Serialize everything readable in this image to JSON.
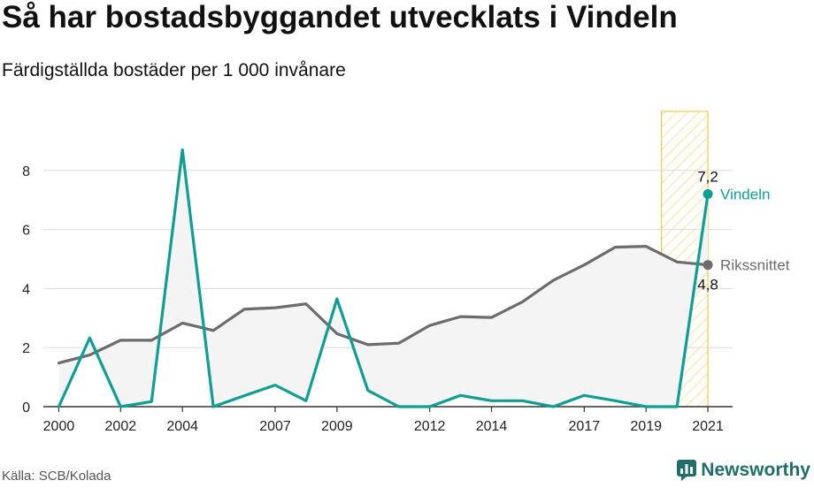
{
  "header": {
    "title": "Så har bostadsbyggandet utvecklats i Vindeln",
    "subtitle": "Färdigställda bostäder per 1 000 invånare"
  },
  "footer": {
    "source": "Källa: SCB/Kolada",
    "brand": "Newsworthy",
    "brand_icon": "newsworthy-logo-icon"
  },
  "colors": {
    "vindeln": "#0f9e94",
    "riket": "#6c6b70",
    "highlight": "#f2c84b",
    "area": "#f4f4f4"
  },
  "chart_data": {
    "type": "line",
    "x": [
      2000,
      2001,
      2002,
      2003,
      2004,
      2005,
      2006,
      2007,
      2008,
      2009,
      2010,
      2011,
      2012,
      2013,
      2014,
      2015,
      2016,
      2017,
      2018,
      2019,
      2020,
      2021
    ],
    "x_ticks": [
      "2000",
      "2002",
      "2004",
      "2007",
      "2009",
      "2012",
      "2014",
      "2017",
      "2019",
      "2021"
    ],
    "y_ticks": [
      "0",
      "2",
      "4",
      "6",
      "8"
    ],
    "ylim": [
      0,
      10
    ],
    "xlim": [
      1999.5,
      2021.8
    ],
    "grid": true,
    "highlight_range": [
      2019.5,
      2021
    ],
    "series": [
      {
        "name": "Vindeln",
        "values": [
          0,
          2.33,
          0,
          0.17,
          8.7,
          0,
          0.37,
          0.73,
          0.2,
          3.65,
          0.55,
          0,
          0,
          0.38,
          0.2,
          0.2,
          0,
          0.38,
          0.2,
          0,
          0,
          7.2
        ],
        "end_label": "7,2"
      },
      {
        "name": "Rikssnittet",
        "values": [
          1.48,
          1.75,
          2.25,
          2.25,
          2.83,
          2.58,
          3.3,
          3.35,
          3.48,
          2.47,
          2.1,
          2.15,
          2.75,
          3.05,
          3.02,
          3.55,
          4.28,
          4.8,
          5.4,
          5.43,
          4.9,
          4.8
        ],
        "end_label": "4,8"
      }
    ]
  }
}
